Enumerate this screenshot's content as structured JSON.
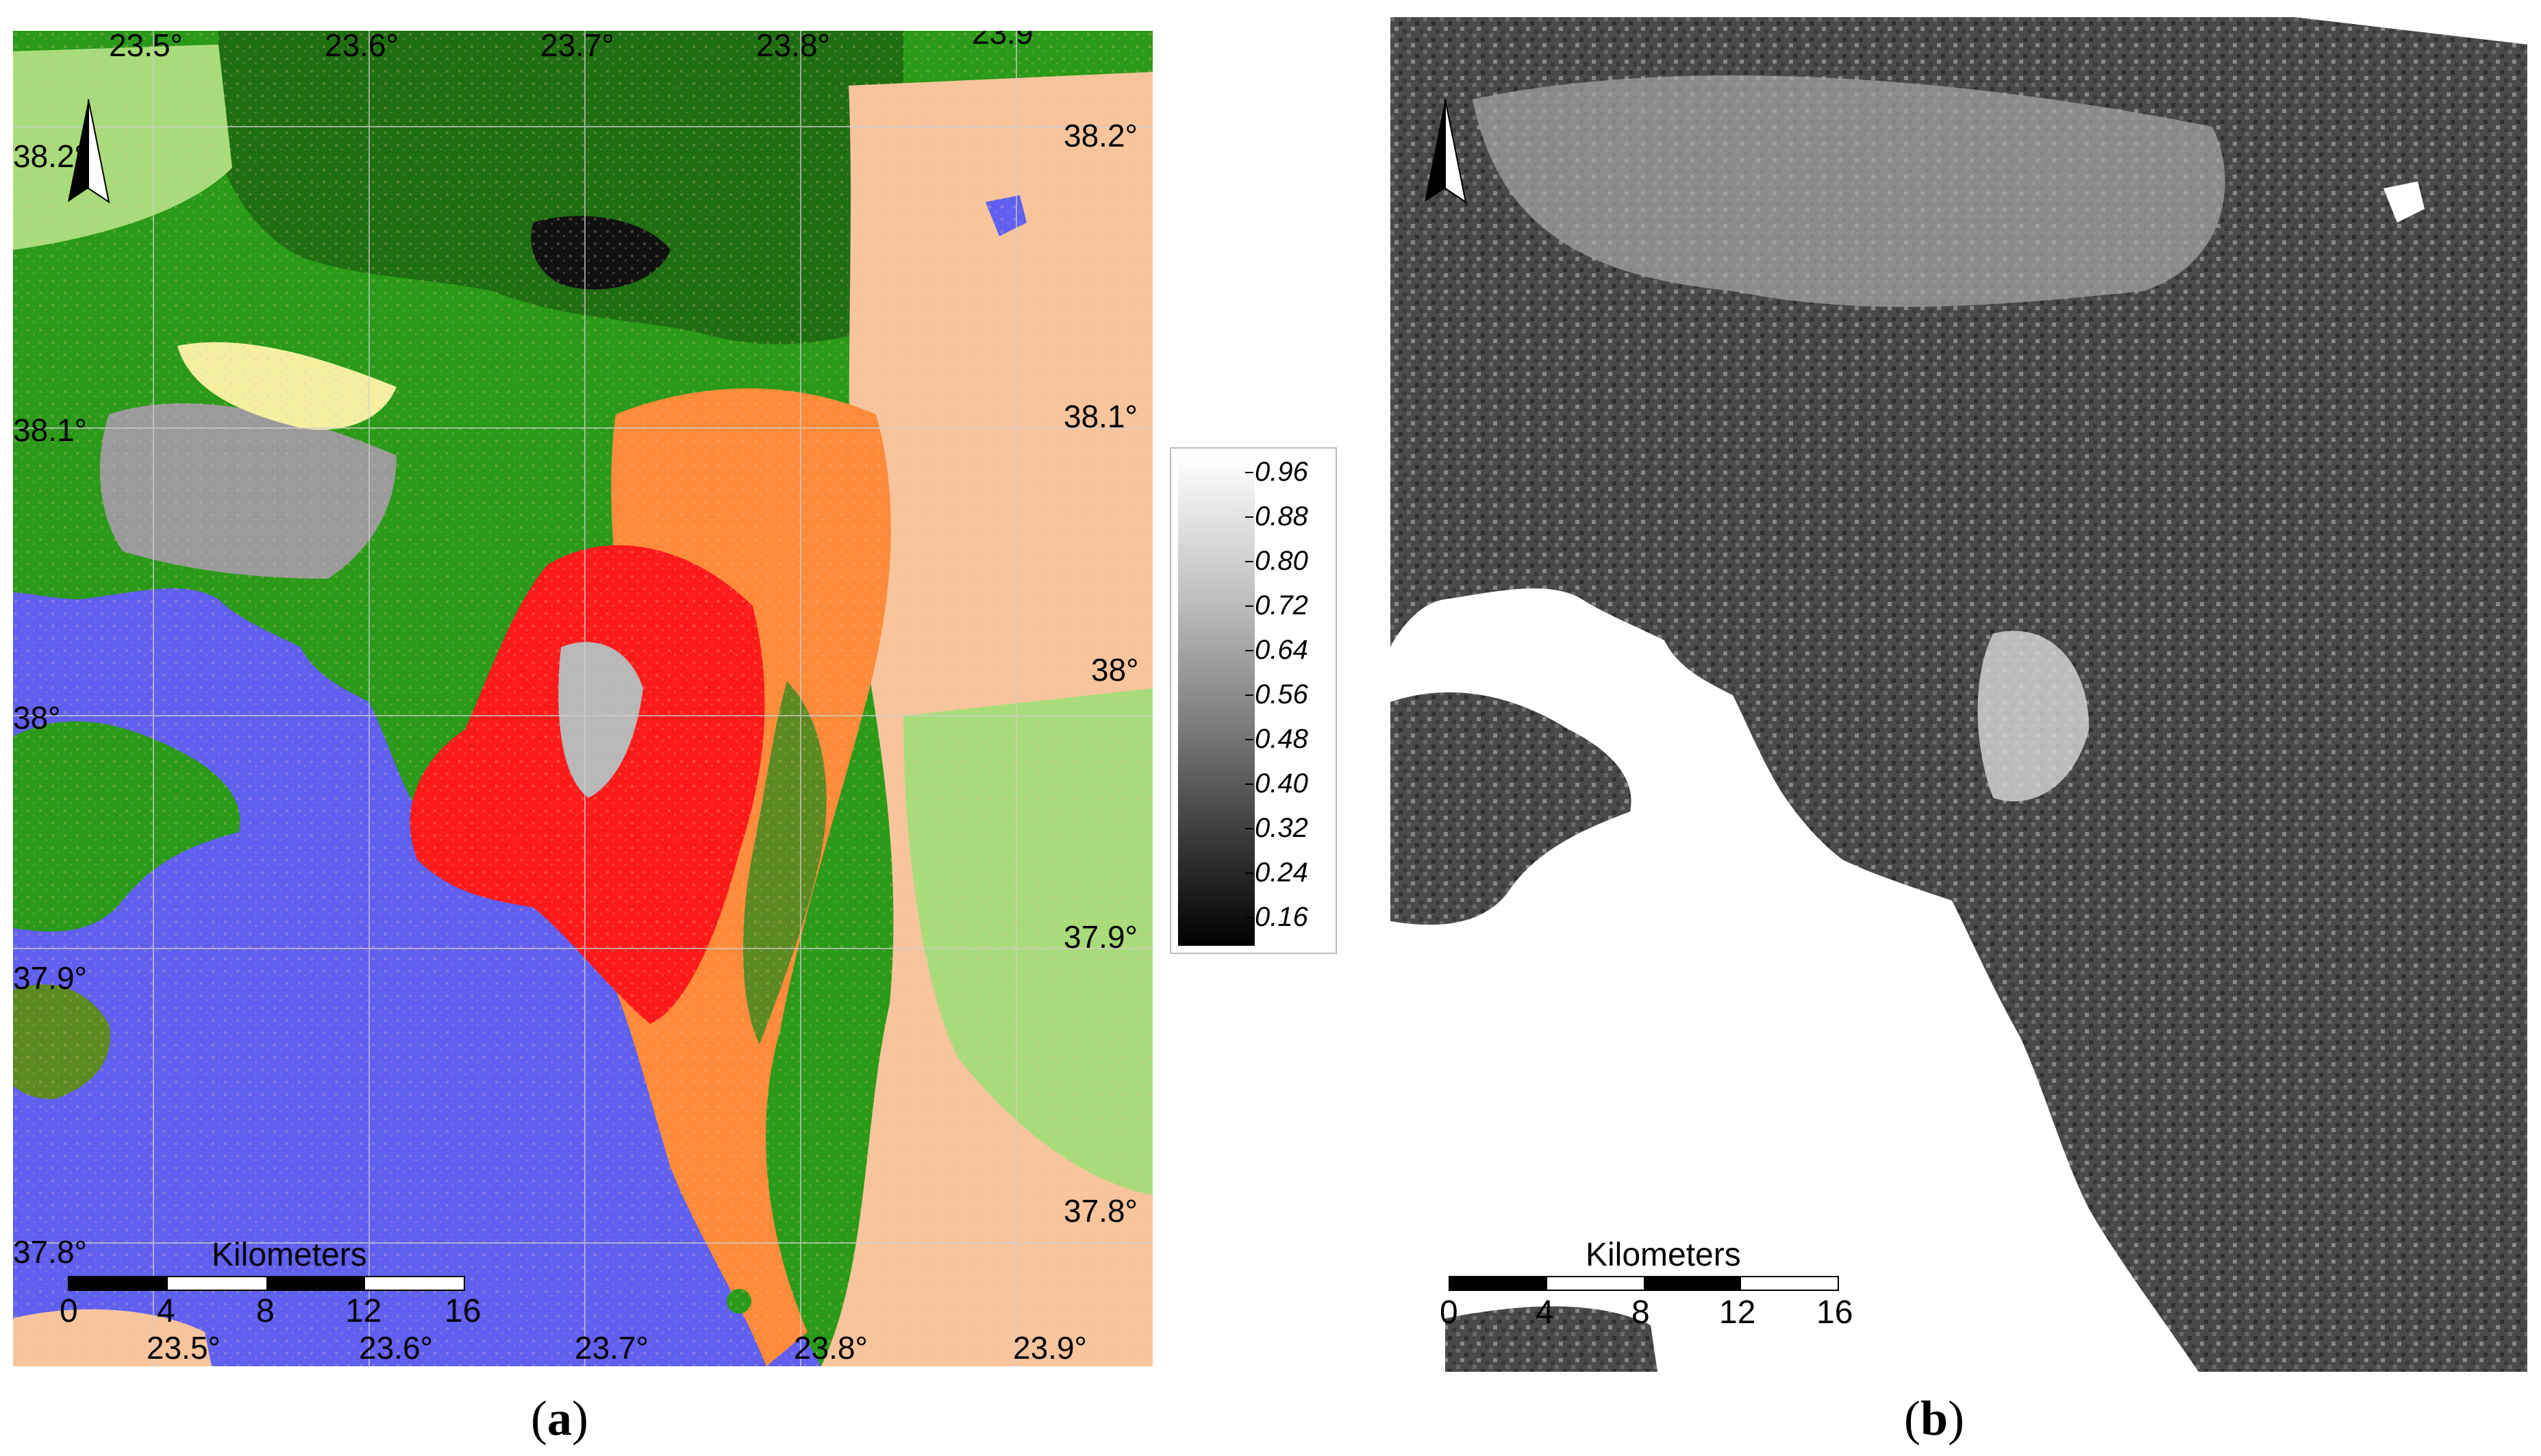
{
  "panel_a": {
    "caption": "a",
    "top_lon_labels": [
      "23.5°",
      "23.6°",
      "23.7°",
      "23.8°",
      "23.9°"
    ],
    "bottom_lon_labels": [
      "23.5°",
      "23.6°",
      "23.7°",
      "23.8°",
      "23.9°"
    ],
    "left_lat_labels": [
      "38.2°",
      "38.1°",
      "38°",
      "37.9°",
      "37.8°"
    ],
    "right_lat_labels": [
      "38.2°",
      "38.1°",
      "38°",
      "37.9°",
      "37.8°"
    ],
    "scale": {
      "title": "Kilometers",
      "ticks": [
        "0",
        "4",
        "8",
        "12",
        "16"
      ]
    },
    "colors": {
      "sea": "#5f5ff0",
      "forest_dark": "#1f6e12",
      "forest": "#2a9a18",
      "grass": "#a8dc7a",
      "shrub": "#5c8a22",
      "urban_dense": "#ff1a1a",
      "urban": "#ff8a3a",
      "agri": "#f8c49c",
      "bare_gray": "#b8b8b8",
      "dry": "#f4f0a0",
      "burnt": "#111111"
    }
  },
  "panel_b": {
    "caption": "b",
    "scale": {
      "title": "Kilometers",
      "ticks": [
        "0",
        "4",
        "8",
        "12",
        "16"
      ]
    }
  },
  "legend": {
    "ticks": [
      "0.96",
      "0.88",
      "0.80",
      "0.72",
      "0.64",
      "0.56",
      "0.48",
      "0.40",
      "0.32",
      "0.24",
      "0.16"
    ]
  }
}
